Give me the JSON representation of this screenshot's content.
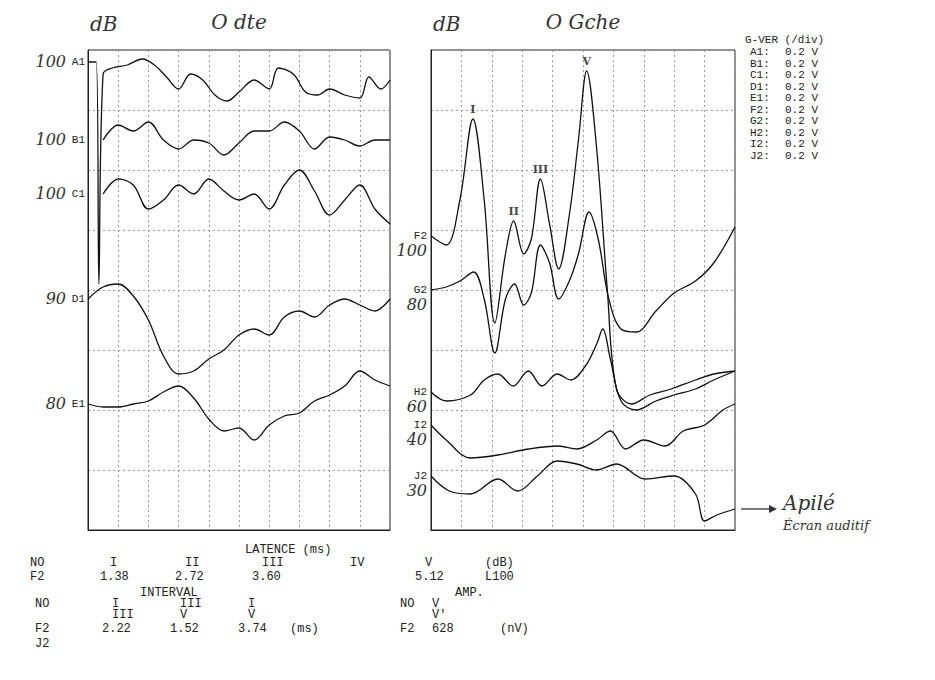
{
  "chart_data": [
    {
      "type": "line",
      "title": "O dte",
      "level_heading": "dB",
      "color": "#111111",
      "xlim": [
        0,
        10
      ],
      "xticks": [
        0,
        1,
        2,
        3,
        4,
        5,
        6,
        7,
        8,
        9,
        10
      ],
      "ylim": [
        0,
        1.6
      ],
      "yticks": [
        0,
        0.2,
        0.4,
        0.6,
        0.8,
        1.0,
        1.2,
        1.4,
        1.6
      ],
      "grid": true,
      "tick_labels": false,
      "series": [
        {
          "name": "A1",
          "level": 100,
          "x": [
            0,
            0.27,
            0.36,
            0.5,
            0.8,
            1.3,
            1.8,
            2.2,
            2.6,
            3.0,
            3.4,
            3.8,
            4.2,
            4.6,
            5.0,
            5.5,
            6.0,
            6.3,
            6.8,
            7.2,
            7.6,
            8.0,
            8.5,
            9.0,
            9.3,
            9.7,
            10
          ],
          "values": [
            1.56,
            1.56,
            0.82,
            1.52,
            1.54,
            1.55,
            1.57,
            1.55,
            1.51,
            1.47,
            1.52,
            1.5,
            1.45,
            1.43,
            1.46,
            1.5,
            1.47,
            1.54,
            1.52,
            1.46,
            1.45,
            1.47,
            1.45,
            1.44,
            1.51,
            1.47,
            1.5
          ]
        },
        {
          "name": "B1",
          "level": 100,
          "x": [
            0.5,
            1,
            1.5,
            2,
            2.5,
            3,
            3.5,
            4,
            4.5,
            5,
            5.5,
            6,
            6.5,
            7,
            7.5,
            8,
            8.5,
            9,
            9.5,
            10
          ],
          "values": [
            1.3,
            1.35,
            1.33,
            1.36,
            1.3,
            1.27,
            1.3,
            1.29,
            1.25,
            1.29,
            1.33,
            1.33,
            1.36,
            1.33,
            1.27,
            1.31,
            1.3,
            1.28,
            1.3,
            1.3
          ]
        },
        {
          "name": "C1",
          "level": 100,
          "x": [
            0.5,
            1,
            1.5,
            2,
            2.5,
            3,
            3.5,
            4,
            4.5,
            5,
            5.5,
            6,
            6.5,
            7,
            7.5,
            8,
            8.5,
            9,
            9.5,
            10
          ],
          "values": [
            1.12,
            1.17,
            1.15,
            1.07,
            1.1,
            1.15,
            1.12,
            1.17,
            1.13,
            1.1,
            1.12,
            1.07,
            1.15,
            1.2,
            1.13,
            1.05,
            1.1,
            1.15,
            1.07,
            1.02
          ]
        },
        {
          "name": "D1",
          "level": 90,
          "x": [
            0,
            0.5,
            1,
            1.5,
            2,
            2.5,
            3,
            3.5,
            4,
            4.5,
            5,
            5.5,
            6,
            6.5,
            7,
            7.5,
            8,
            8.5,
            9,
            9.5,
            10
          ],
          "values": [
            0.77,
            0.81,
            0.82,
            0.78,
            0.7,
            0.58,
            0.52,
            0.53,
            0.57,
            0.6,
            0.65,
            0.67,
            0.65,
            0.71,
            0.73,
            0.71,
            0.75,
            0.77,
            0.75,
            0.73,
            0.77
          ]
        },
        {
          "name": "E1",
          "level": 80,
          "x": [
            0,
            0.5,
            1,
            1.5,
            2,
            2.5,
            3,
            3.5,
            4,
            4.5,
            5,
            5.5,
            6,
            6.5,
            7,
            7.5,
            8,
            8.5,
            9,
            9.5,
            10
          ],
          "values": [
            0.42,
            0.41,
            0.41,
            0.42,
            0.43,
            0.46,
            0.48,
            0.44,
            0.37,
            0.33,
            0.34,
            0.3,
            0.35,
            0.38,
            0.39,
            0.43,
            0.45,
            0.48,
            0.53,
            0.5,
            0.48
          ]
        }
      ]
    },
    {
      "type": "line",
      "title": "O Gche",
      "level_heading": "dB",
      "color": "#111111",
      "xlim": [
        0,
        10
      ],
      "xticks": [
        0,
        1,
        2,
        3,
        4,
        5,
        6,
        7,
        8,
        9,
        10
      ],
      "ylim": [
        0,
        1.6
      ],
      "yticks": [
        0,
        0.2,
        0.4,
        0.6,
        0.8,
        1.0,
        1.2,
        1.4,
        1.6
      ],
      "grid": true,
      "tick_labels": false,
      "series": [
        {
          "name": "F2",
          "level": 100,
          "x": [
            0,
            0.5,
            0.95,
            1.38,
            1.75,
            2.1,
            2.45,
            2.72,
            3.05,
            3.3,
            3.6,
            3.9,
            4.2,
            4.55,
            4.85,
            5.12,
            5.45,
            5.8,
            6.1,
            6.6,
            7.2,
            7.9,
            8.7,
            9.3,
            10
          ],
          "values": [
            0.98,
            0.95,
            1.1,
            1.37,
            1.1,
            0.69,
            0.92,
            1.03,
            0.92,
            0.97,
            1.17,
            1.02,
            0.87,
            1.05,
            1.3,
            1.53,
            1.27,
            0.8,
            0.47,
            0.42,
            0.45,
            0.47,
            0.5,
            0.52,
            0.53
          ]
        },
        {
          "name": "G2",
          "level": 80,
          "x": [
            0,
            0.5,
            0.95,
            1.4,
            1.75,
            2.1,
            2.45,
            2.75,
            3.05,
            3.3,
            3.6,
            3.9,
            4.2,
            4.55,
            4.85,
            5.2,
            5.5,
            5.85,
            6.25,
            6.75,
            7.4,
            8.0,
            8.7,
            9.3,
            10
          ],
          "values": [
            0.8,
            0.81,
            0.83,
            0.86,
            0.77,
            0.59,
            0.77,
            0.82,
            0.75,
            0.79,
            0.95,
            0.89,
            0.77,
            0.83,
            0.92,
            1.06,
            0.97,
            0.77,
            0.67,
            0.66,
            0.73,
            0.79,
            0.83,
            0.89,
            1.01
          ]
        },
        {
          "name": "H2",
          "level": 60,
          "x": [
            0,
            0.5,
            1.3,
            1.75,
            2.2,
            2.7,
            3.2,
            3.65,
            4.15,
            4.6,
            5.1,
            5.45,
            5.65,
            5.9,
            6.25,
            6.75,
            7.4,
            8.0,
            8.7,
            9.3,
            10
          ],
          "values": [
            0.46,
            0.43,
            0.45,
            0.5,
            0.52,
            0.48,
            0.53,
            0.48,
            0.52,
            0.5,
            0.55,
            0.62,
            0.67,
            0.57,
            0.43,
            0.4,
            0.43,
            0.45,
            0.47,
            0.5,
            0.53
          ]
        },
        {
          "name": "I2",
          "level": 40,
          "x": [
            0,
            0.5,
            1.3,
            2.2,
            3.2,
            4.2,
            4.8,
            5.45,
            5.9,
            6.4,
            7.0,
            7.7,
            8.3,
            9.0,
            9.6,
            10
          ],
          "values": [
            0.35,
            0.3,
            0.24,
            0.25,
            0.27,
            0.28,
            0.27,
            0.3,
            0.33,
            0.27,
            0.3,
            0.28,
            0.33,
            0.35,
            0.4,
            0.42
          ]
        },
        {
          "name": "J2",
          "level": 30,
          "x": [
            0,
            0.6,
            1.3,
            2.2,
            2.85,
            3.5,
            4.15,
            4.8,
            5.45,
            6.1,
            7.05,
            8.0,
            8.7,
            9.0,
            9.4,
            10
          ],
          "values": [
            0.18,
            0.13,
            0.12,
            0.17,
            0.13,
            0.18,
            0.23,
            0.22,
            0.2,
            0.22,
            0.17,
            0.18,
            0.12,
            0.03,
            0.05,
            0.07
          ]
        }
      ],
      "peak_series": "F2",
      "peak_labels": [
        {
          "label": "I",
          "x": 1.38
        },
        {
          "label": "II",
          "x": 2.72
        },
        {
          "label": "III",
          "x": 3.6
        },
        {
          "label": "V",
          "x": 5.12
        }
      ],
      "annotation": {
        "series": "J2",
        "lines": [
          "Apilé",
          "Écran auditif"
        ]
      }
    }
  ],
  "gain": {
    "title": "G-VER (/div)",
    "rows": [
      {
        "label": "A1:",
        "value": 0.2,
        "unit": "V"
      },
      {
        "label": "B1:",
        "value": 0.2,
        "unit": "V"
      },
      {
        "label": "C1:",
        "value": 0.2,
        "unit": "V"
      },
      {
        "label": "D1:",
        "value": 0.2,
        "unit": "V"
      },
      {
        "label": "E1:",
        "value": 0.2,
        "unit": "V"
      },
      {
        "label": "F2:",
        "value": 0.2,
        "unit": "V"
      },
      {
        "label": "G2:",
        "value": 0.2,
        "unit": "V"
      },
      {
        "label": "H2:",
        "value": 0.2,
        "unit": "V"
      },
      {
        "label": "I2:",
        "value": 0.2,
        "unit": "V"
      },
      {
        "label": "J2:",
        "value": 0.2,
        "unit": "V"
      }
    ]
  },
  "table": {
    "latency": {
      "title": "LATENCE (ms)",
      "header": [
        "NO",
        "I",
        "II",
        "III",
        "IV",
        "V",
        "(dB)"
      ],
      "rows": [
        [
          "F2",
          "1.38",
          "2.72",
          "3.60",
          null,
          "5.12",
          "L100"
        ]
      ]
    },
    "interval": {
      "title": "INTERVAL",
      "unit": "(ms)",
      "header": [
        [
          "NO"
        ],
        [
          "I",
          "III"
        ],
        [
          "III",
          "V"
        ],
        [
          "I",
          "V"
        ]
      ],
      "rows": [
        [
          "F2",
          "2.22",
          "1.52",
          "3.74"
        ],
        [
          "J2",
          null,
          null,
          null
        ]
      ]
    },
    "amplitude": {
      "title": "AMP.",
      "unit": "(nV)",
      "header": [
        [
          "NO"
        ],
        [
          "V",
          "V'"
        ]
      ],
      "rows": [
        [
          "F2",
          "628"
        ]
      ]
    }
  }
}
